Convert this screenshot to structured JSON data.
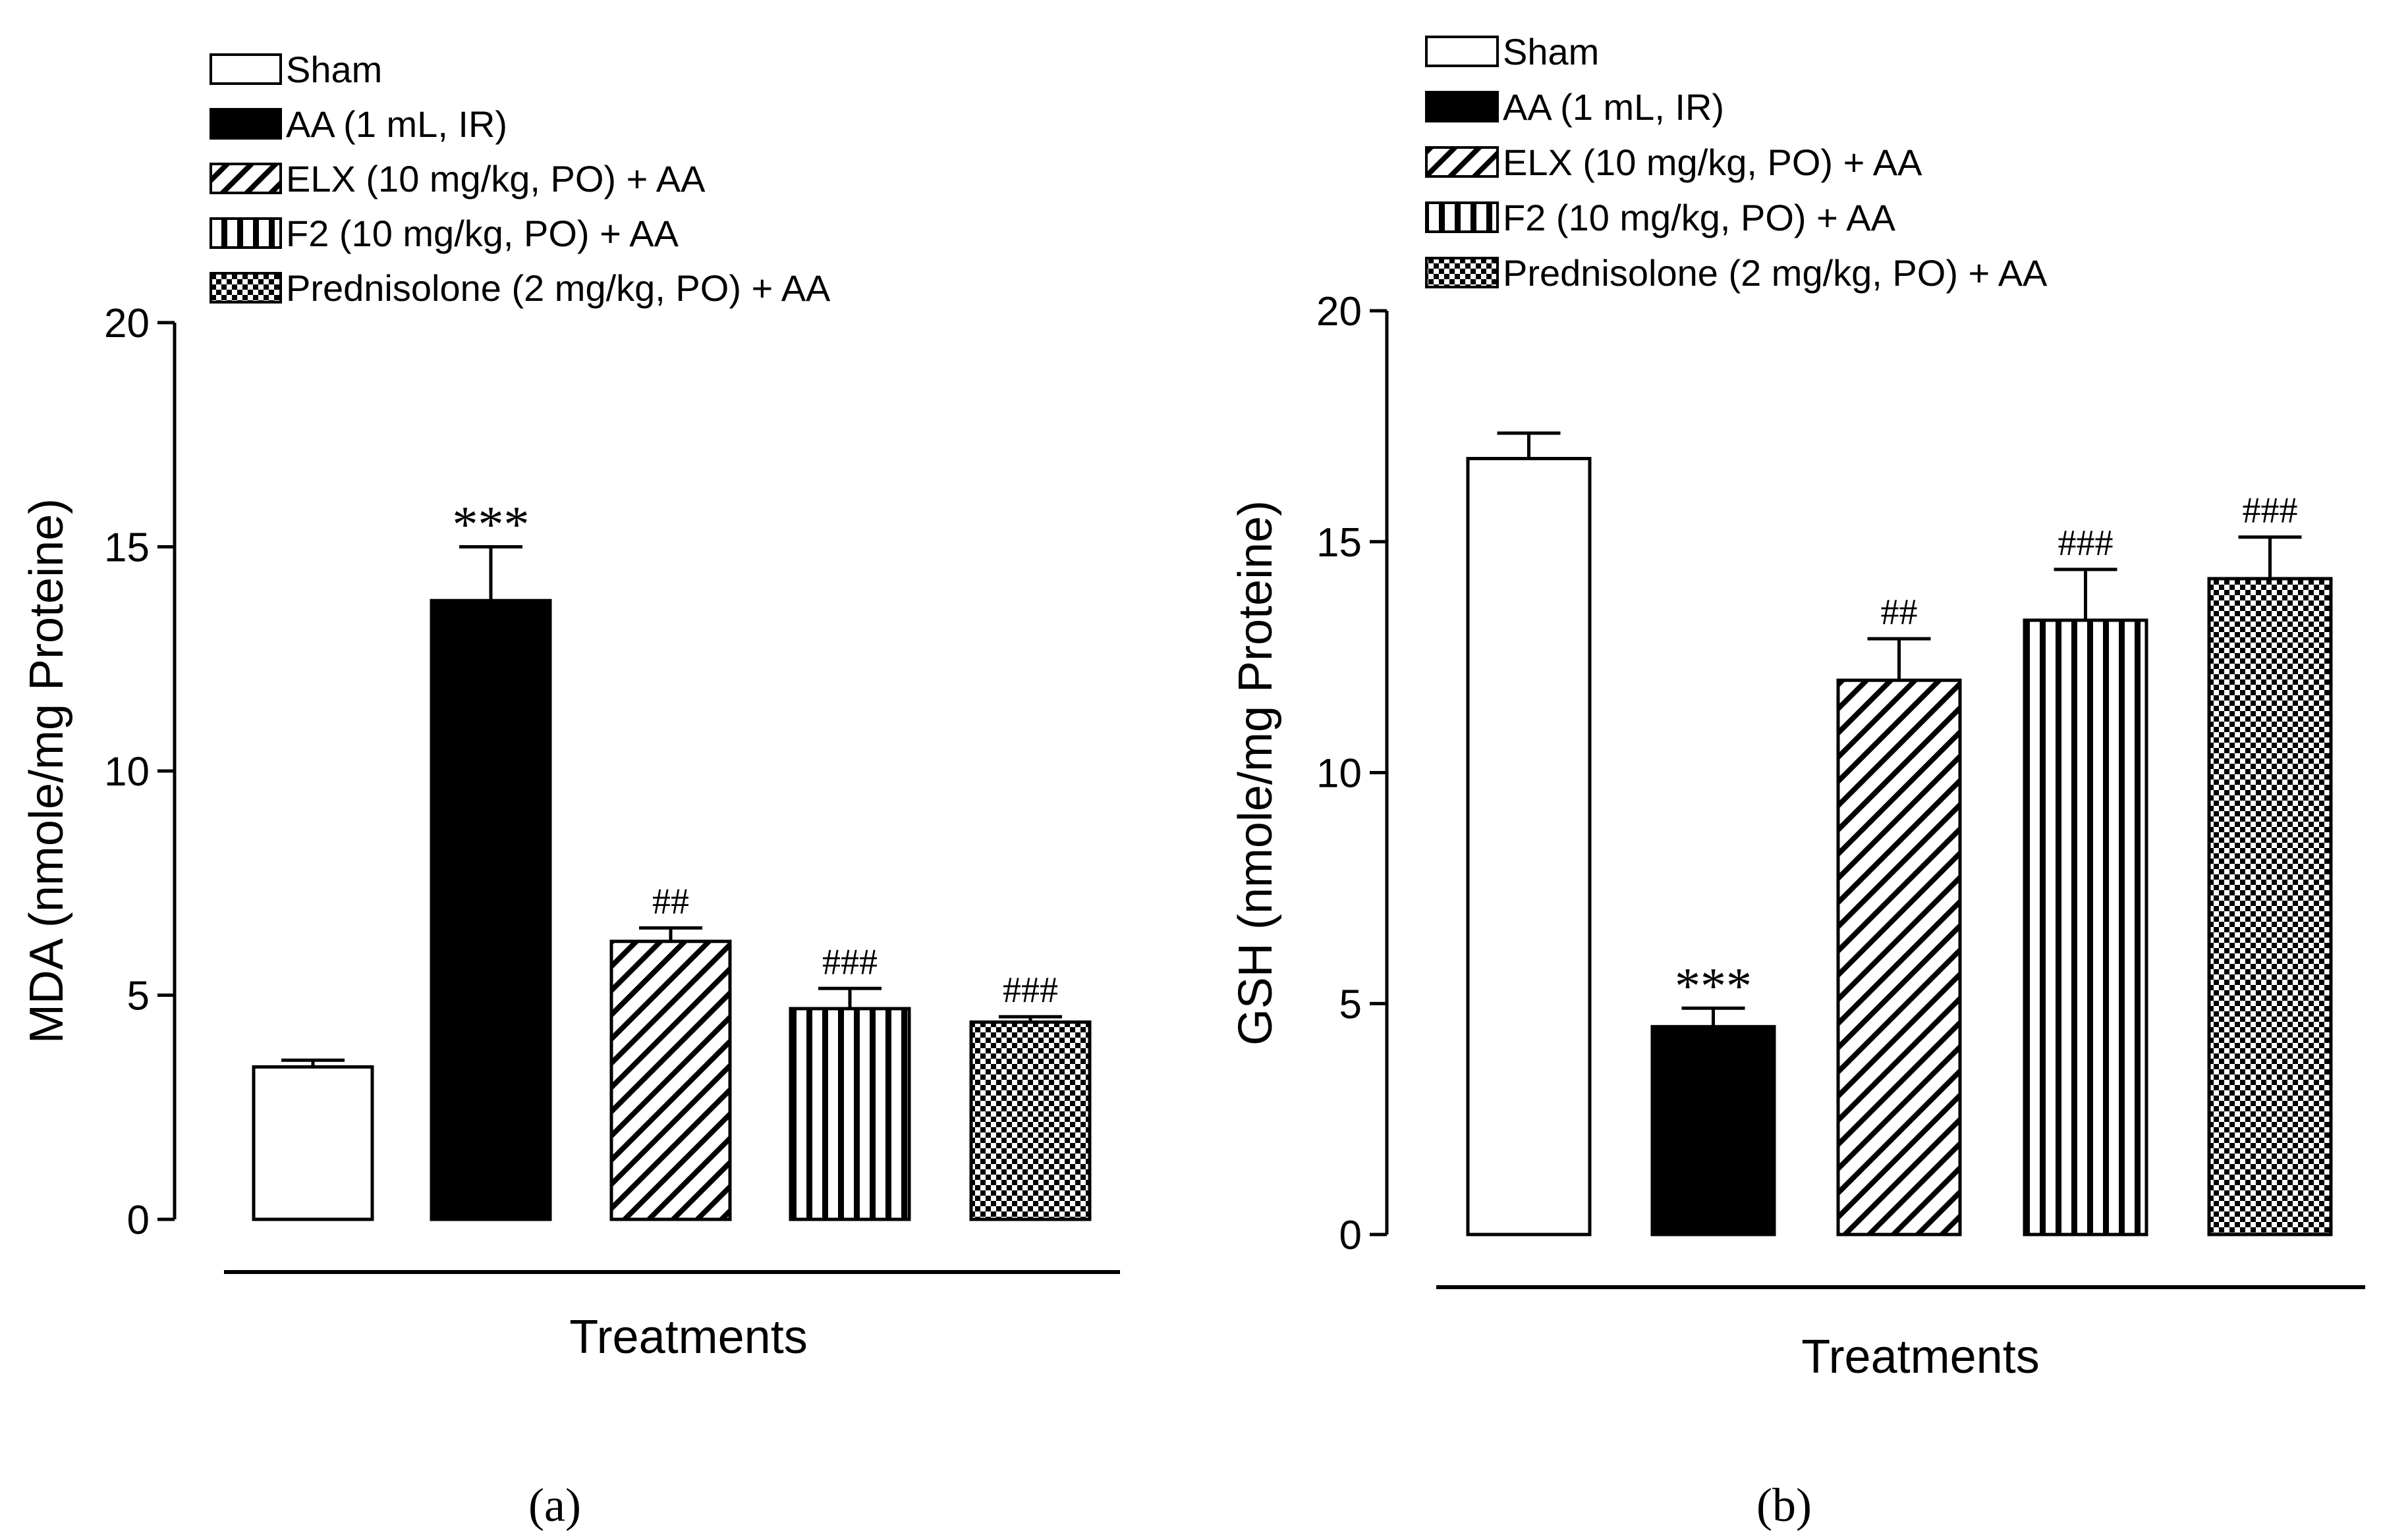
{
  "figure": {
    "legend": [
      "Sham",
      "AA (1 mL, IR)",
      "ELX (10 mg/kg, PO) + AA",
      "F2 (10 mg/kg, PO) + AA",
      "Prednisolone (2 mg/kg, PO) + AA"
    ],
    "patterns": [
      "white",
      "black",
      "diagonal-hatch",
      "vertical-stripes",
      "checkerboard"
    ]
  },
  "chart_data": [
    {
      "type": "bar",
      "panel_label": "(a)",
      "xlabel": "Treatments",
      "ylabel": "MDA (nmole/mg Proteine)",
      "ylim": [
        0,
        20
      ],
      "yticks": [
        "0",
        "5",
        "10",
        "15",
        "20"
      ],
      "categories": [
        "Sham",
        "AA (1 mL, IR)",
        "ELX (10 mg/kg, PO) + AA",
        "F2 (10 mg/kg, PO) + AA",
        "Prednisolone (2 mg/kg, PO) + AA"
      ],
      "values": [
        3.4,
        13.8,
        6.2,
        4.7,
        4.4
      ],
      "errors": [
        0.15,
        1.2,
        0.3,
        0.45,
        0.12
      ],
      "annotations": [
        "",
        "***",
        "##",
        "###",
        "###"
      ],
      "legend_placement": "top"
    },
    {
      "type": "bar",
      "panel_label": "(b)",
      "xlabel": "Treatments",
      "ylabel": "GSH (nmole/mg Proteine)",
      "ylim": [
        0,
        20
      ],
      "yticks": [
        "0",
        "5",
        "10",
        "15",
        "20"
      ],
      "categories": [
        "Sham",
        "AA (1 mL, IR)",
        "ELX (10 mg/kg, PO) + AA",
        "F2 (10 mg/kg, PO) + AA",
        "Prednisolone (2 mg/kg, PO) + AA"
      ],
      "values": [
        16.8,
        4.5,
        12.0,
        13.3,
        14.2
      ],
      "errors": [
        0.55,
        0.4,
        0.9,
        1.1,
        0.9
      ],
      "annotations": [
        "***",
        "##",
        "###",
        "###"
      ],
      "annotation_bars": [
        1,
        2,
        3,
        4
      ],
      "legend_placement": "top"
    }
  ]
}
